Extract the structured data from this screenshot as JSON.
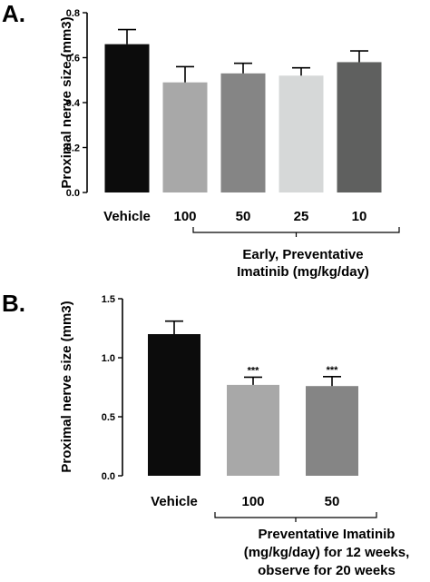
{
  "chart_data": [
    {
      "panel": "A.",
      "type": "bar",
      "ylabel": "Proximal nerve size (mm3)",
      "ylim": [
        0,
        0.8
      ],
      "yticks": [
        "0.0",
        "0.2",
        "0.4",
        "0.6",
        "0.8"
      ],
      "categories": [
        "Vehicle",
        "100",
        "50",
        "25",
        "10"
      ],
      "values": [
        0.66,
        0.49,
        0.53,
        0.52,
        0.58
      ],
      "errors": [
        0.065,
        0.07,
        0.045,
        0.035,
        0.05
      ],
      "colors": [
        "#0c0c0c",
        "#a8a8a8",
        "#858585",
        "#d6d8d8",
        "#5f605f"
      ],
      "significance": [
        "",
        "",
        "",
        "",
        ""
      ],
      "group_label": [
        "Early, Preventative",
        "Imatinib (mg/kg/day)"
      ],
      "grid": false
    },
    {
      "panel": "B.",
      "type": "bar",
      "ylabel": "Proximal nerve size (mm3)",
      "ylim": [
        0,
        1.5
      ],
      "yticks": [
        "0.0",
        "0.5",
        "1.0",
        "1.5"
      ],
      "categories": [
        "Vehicle",
        "100",
        "50"
      ],
      "values": [
        1.2,
        0.77,
        0.76
      ],
      "errors": [
        0.11,
        0.065,
        0.08
      ],
      "colors": [
        "#0c0c0c",
        "#a8a8a8",
        "#858585"
      ],
      "significance": [
        "",
        "***",
        "***"
      ],
      "group_label": [
        "Preventative Imatinib",
        "(mg/kg/day) for 12 weeks,",
        "observe for 20 weeks"
      ],
      "grid": false
    }
  ]
}
